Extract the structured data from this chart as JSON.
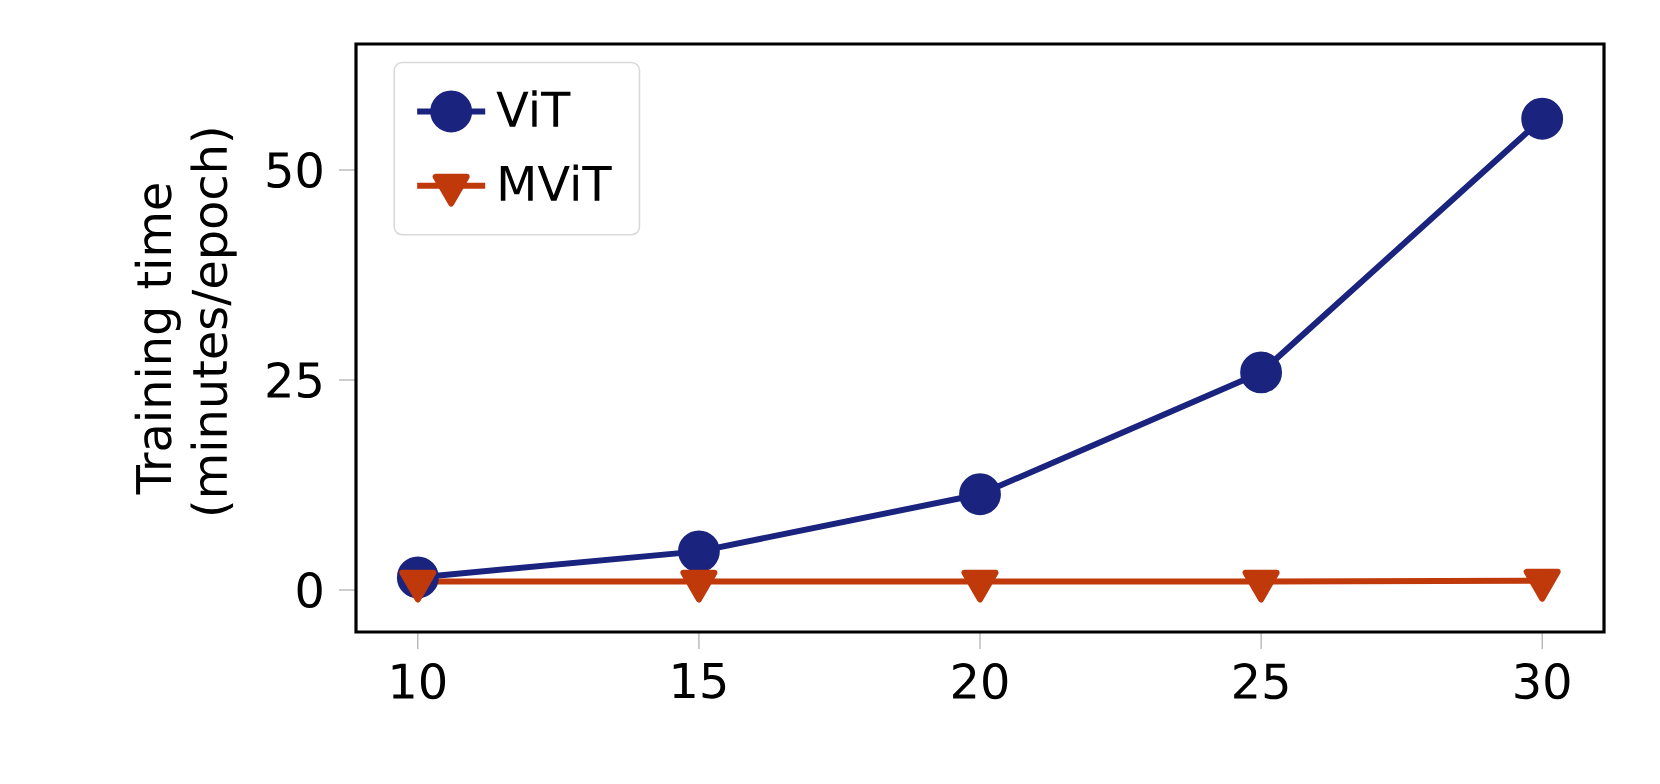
{
  "chart_data": {
    "type": "line",
    "ylabel": "Training time (minutes/epoch)",
    "x": [
      10,
      15,
      20,
      25,
      30
    ],
    "series": [
      {
        "name": "ViT",
        "color": "#1a237e",
        "marker": "circle",
        "values": [
          1.5,
          4.6,
          11.4,
          25.9,
          56.1
        ]
      },
      {
        "name": "MViT",
        "color": "#c0390b",
        "marker": "triangle",
        "values": [
          1.0,
          1.0,
          1.0,
          1.0,
          1.1
        ]
      }
    ],
    "xlim": [
      8.9,
      31.1
    ],
    "ylim": [
      -5,
      65
    ],
    "xticks": [
      10,
      15,
      20,
      25,
      30
    ],
    "yticks": [
      0,
      25,
      50
    ],
    "grid": false,
    "legend": "top left",
    "line_style": "solid"
  }
}
